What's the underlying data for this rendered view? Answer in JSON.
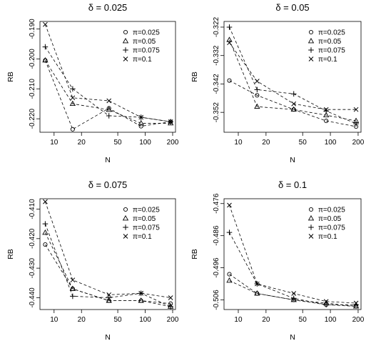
{
  "chart_data": [
    {
      "type": "line",
      "title": "δ = 0.025",
      "xlabel": "N",
      "ylabel": "RB",
      "x_scale": "log",
      "x_ticks": [
        10,
        20,
        50,
        100,
        200
      ],
      "y_ticks": [
        -0.19,
        -0.2,
        -0.21,
        -0.22
      ],
      "y_tick_labels": [
        "-0.190",
        "-0.200",
        "-0.210",
        "-0.220"
      ],
      "ylim": [
        -0.2245,
        -0.1875
      ],
      "legend_position": "top-right",
      "x": [
        8,
        16,
        40,
        90,
        190
      ],
      "series": [
        {
          "name": "π=0.025",
          "marker": "circle",
          "values": [
            -0.2005,
            -0.2235,
            -0.2165,
            -0.2225,
            -0.221
          ]
        },
        {
          "name": "π=0.05",
          "marker": "triangle",
          "values": [
            -0.2005,
            -0.215,
            -0.217,
            -0.2215,
            -0.2215
          ]
        },
        {
          "name": "π=0.075",
          "marker": "plus",
          "values": [
            -0.196,
            -0.21,
            -0.219,
            -0.2195,
            -0.221
          ]
        },
        {
          "name": "π=0.1",
          "marker": "cross",
          "values": [
            -0.1885,
            -0.213,
            -0.214,
            -0.2195,
            -0.221
          ]
        }
      ]
    },
    {
      "type": "line",
      "title": "δ = 0.05",
      "xlabel": "N",
      "ylabel": "RB",
      "x_scale": "log",
      "x_ticks": [
        10,
        20,
        50,
        100,
        200
      ],
      "y_ticks": [
        -0.322,
        -0.332,
        -0.342,
        -0.352
      ],
      "y_tick_labels": [
        "-0.322",
        "-0.332",
        "-0.342",
        "-0.352"
      ],
      "ylim": [
        -0.359,
        -0.32
      ],
      "legend_position": "top-right",
      "x": [
        8,
        16,
        40,
        90,
        190
      ],
      "series": [
        {
          "name": "π=0.025",
          "marker": "circle",
          "values": [
            -0.3408,
            -0.346,
            -0.351,
            -0.355,
            -0.357
          ]
        },
        {
          "name": "π=0.05",
          "marker": "triangle",
          "values": [
            -0.3265,
            -0.35,
            -0.351,
            -0.353,
            -0.355
          ]
        },
        {
          "name": "π=0.075",
          "marker": "plus",
          "values": [
            -0.322,
            -0.344,
            -0.3455,
            -0.3515,
            -0.356
          ]
        },
        {
          "name": "π=0.1",
          "marker": "cross",
          "values": [
            -0.3275,
            -0.341,
            -0.349,
            -0.351,
            -0.351
          ]
        }
      ]
    },
    {
      "type": "line",
      "title": "δ = 0.075",
      "xlabel": "N",
      "ylabel": "RB",
      "x_scale": "log",
      "x_ticks": [
        10,
        20,
        50,
        100,
        200
      ],
      "y_ticks": [
        -0.41,
        -0.42,
        -0.43,
        -0.44
      ],
      "y_tick_labels": [
        "-0.410",
        "-0.420",
        "-0.430",
        "-0.440"
      ],
      "ylim": [
        -0.444,
        -0.4065
      ],
      "legend_position": "top-right",
      "x": [
        8,
        16,
        40,
        90,
        190
      ],
      "series": [
        {
          "name": "π=0.025",
          "marker": "circle",
          "values": [
            -0.422,
            -0.437,
            -0.441,
            -0.441,
            -0.442
          ]
        },
        {
          "name": "π=0.05",
          "marker": "triangle",
          "values": [
            -0.418,
            -0.437,
            -0.441,
            -0.441,
            -0.443
          ]
        },
        {
          "name": "π=0.075",
          "marker": "plus",
          "values": [
            -0.415,
            -0.4395,
            -0.44,
            -0.4385,
            -0.443
          ]
        },
        {
          "name": "π=0.1",
          "marker": "cross",
          "values": [
            -0.4075,
            -0.434,
            -0.439,
            -0.4385,
            -0.44
          ]
        }
      ]
    },
    {
      "type": "line",
      "title": "δ = 0.1",
      "xlabel": "N",
      "ylabel": "RB",
      "x_scale": "log",
      "x_ticks": [
        10,
        20,
        50,
        100,
        200
      ],
      "y_ticks": [
        -0.476,
        -0.486,
        -0.496,
        -0.506
      ],
      "y_tick_labels": [
        "-0.476",
        "-0.486",
        "-0.496",
        "-0.506"
      ],
      "ylim": [
        -0.509,
        -0.4745
      ],
      "legend_position": "top-right",
      "x": [
        8,
        16,
        40,
        90,
        190
      ],
      "series": [
        {
          "name": "π=0.025",
          "marker": "circle",
          "values": [
            -0.498,
            -0.504,
            -0.506,
            -0.5075,
            -0.508
          ]
        },
        {
          "name": "π=0.05",
          "marker": "triangle",
          "values": [
            -0.5,
            -0.504,
            -0.506,
            -0.507,
            -0.508
          ]
        },
        {
          "name": "π=0.075",
          "marker": "plus",
          "values": [
            -0.485,
            -0.501,
            -0.5055,
            -0.5075,
            -0.5075
          ]
        },
        {
          "name": "π=0.1",
          "marker": "cross",
          "values": [
            -0.4765,
            -0.501,
            -0.504,
            -0.5065,
            -0.507
          ]
        }
      ]
    }
  ]
}
